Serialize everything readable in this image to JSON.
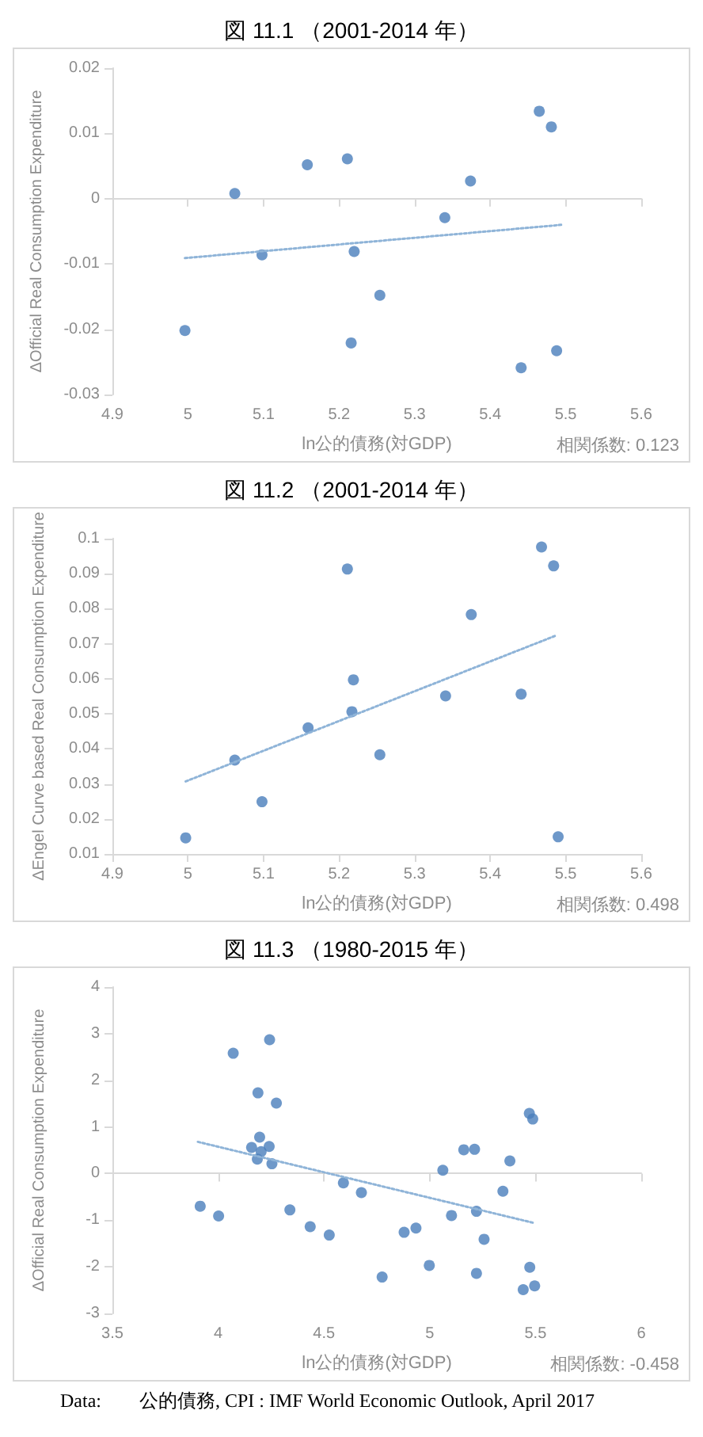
{
  "chart_data": [
    {
      "type": "scatter",
      "title": "図 11.1 （2001-2014 年）",
      "xlabel": "ln公的債務(対GDP)",
      "ylabel": "ΔOfficial Real Consumption Expenditure",
      "annotations": [
        "相関係数: 0.123"
      ],
      "xlim": [
        4.9,
        5.6
      ],
      "xticks": [
        4.9,
        5,
        5.1,
        5.2,
        5.3,
        5.4,
        5.5,
        5.6
      ],
      "ylim": [
        -0.03,
        0.02
      ],
      "yticks": [
        -0.03,
        -0.02,
        -0.01,
        0,
        0.01,
        0.02
      ],
      "marker": "circle",
      "series": [
        {
          "color": "#4a7ebb",
          "x": [
            5.062,
            5.098,
            5.158,
            5.211,
            5.22,
            5.216,
            5.254,
            4.996,
            5.34,
            5.374,
            5.465,
            5.481,
            5.441,
            5.488
          ],
          "values": [
            0.0008,
            -0.0086,
            0.0052,
            0.0061,
            -0.0081,
            -0.0221,
            -0.0148,
            -0.0202,
            -0.0029,
            0.0027,
            0.0134,
            0.011,
            -0.0259,
            -0.0233
          ]
        },
        {
          "type": "line",
          "line_style": "dotted",
          "marker": "none",
          "color": "#8fb4d8",
          "x": [
            4.996,
            5.495
          ],
          "values": [
            -0.0091,
            -0.004
          ]
        }
      ]
    },
    {
      "type": "scatter",
      "title": "図 11.2 （2001-2014 年）",
      "xlabel": "ln公的債務(対GDP)",
      "ylabel": "ΔEngel Curve based Real Consumption Expenditure",
      "annotations": [
        "相関係数: 0.498"
      ],
      "xlim": [
        4.9,
        5.6
      ],
      "xticks": [
        4.9,
        5,
        5.1,
        5.2,
        5.3,
        5.4,
        5.5,
        5.6
      ],
      "ylim": [
        0.01,
        0.1
      ],
      "yticks": [
        0.01,
        0.02,
        0.03,
        0.04,
        0.05,
        0.06,
        0.07,
        0.08,
        0.09,
        0.1
      ],
      "marker": "circle",
      "series": [
        {
          "color": "#4a7ebb",
          "x": [
            4.997,
            5.062,
            5.098,
            5.159,
            5.211,
            5.219,
            5.217,
            5.254,
            5.341,
            5.375,
            5.441,
            5.468,
            5.484,
            5.49
          ],
          "values": [
            0.0146,
            0.0368,
            0.0249,
            0.046,
            0.0913,
            0.0597,
            0.0506,
            0.0383,
            0.0551,
            0.0783,
            0.0556,
            0.0976,
            0.0922,
            0.0149
          ]
        },
        {
          "type": "line",
          "line_style": "dotted",
          "marker": "none",
          "color": "#8fb4d8",
          "x": [
            4.997,
            5.488
          ],
          "values": [
            0.0307,
            0.0724
          ]
        }
      ]
    },
    {
      "type": "scatter",
      "title": "図 11.3 （1980-2015 年）",
      "xlabel": "ln公的債務(対GDP)",
      "ylabel": "ΔOfficial Real Consumption Expenditure",
      "annotations": [
        "相関係数: -0.458",
        "Data:　　公的債務, CPI : IMF World Economic Outlook, April 2017"
      ],
      "xlim": [
        3.5,
        6
      ],
      "xticks": [
        3.5,
        4,
        4.5,
        5,
        5.5,
        6
      ],
      "ylim": [
        -3,
        4
      ],
      "yticks": [
        -3,
        -2,
        -1,
        0,
        1,
        2,
        3,
        4
      ],
      "marker": "circle",
      "series": [
        {
          "color": "#4a7ebb",
          "x": [
            3.915,
            4.002,
            4.071,
            4.188,
            4.243,
            4.275,
            4.196,
            4.158,
            4.241,
            4.185,
            4.203,
            4.254,
            4.339,
            4.435,
            4.525,
            4.592,
            4.677,
            4.775,
            4.879,
            4.935,
            4.998,
            5.062,
            5.103,
            5.161,
            5.212,
            5.221,
            5.221,
            5.257,
            5.346,
            5.379,
            5.471,
            5.487,
            5.473,
            5.442,
            5.496
          ],
          "values": [
            -0.7,
            -0.91,
            2.58,
            1.73,
            2.87,
            1.51,
            0.78,
            0.56,
            0.58,
            0.31,
            0.47,
            0.21,
            -0.78,
            -1.14,
            -1.32,
            -0.2,
            -0.41,
            -2.22,
            -1.26,
            -1.17,
            -1.97,
            0.07,
            -0.9,
            0.51,
            0.52,
            -0.81,
            -2.14,
            -1.41,
            -0.38,
            0.27,
            1.29,
            1.17,
            -2.01,
            -2.49,
            -2.41
          ]
        },
        {
          "type": "line",
          "line_style": "dotted",
          "marker": "none",
          "color": "#8fb4d8",
          "x": [
            3.904,
            5.493
          ],
          "values": [
            0.68,
            -1.06
          ]
        }
      ]
    }
  ]
}
